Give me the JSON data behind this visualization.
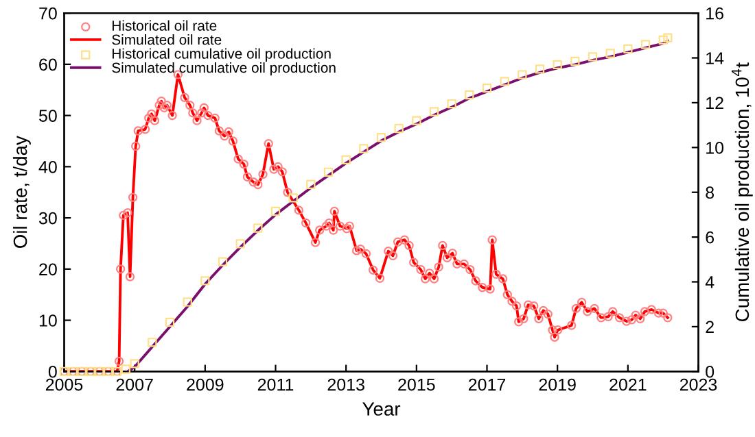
{
  "chart_data": {
    "type": "line",
    "xlabel": "Year",
    "ylabel": "Oil rate, t/day",
    "y2label": "Cumulative oil production, 10$^{4}$t",
    "xlim": [
      2005,
      2023
    ],
    "xticks": [
      2005,
      2007,
      2009,
      2011,
      2013,
      2015,
      2017,
      2019,
      2021,
      2023
    ],
    "ylim": [
      0,
      70
    ],
    "yticks": [
      0,
      10,
      20,
      30,
      40,
      50,
      60,
      70
    ],
    "y2lim": [
      0,
      16
    ],
    "y2ticks": [
      0,
      2,
      4,
      6,
      8,
      10,
      12,
      14,
      16
    ],
    "grid": false,
    "legend": "top left",
    "series": [
      {
        "name": "Historical oil rate",
        "type": "scatter",
        "marker": "circle",
        "color": "#ff8080",
        "x": [
          2005.0,
          2005.25,
          2005.5,
          2005.75,
          2006.0,
          2006.25,
          2006.5,
          2006.56,
          2006.6,
          2006.68,
          2006.8,
          2006.87,
          2006.95,
          2007.03,
          2007.1,
          2007.3,
          2007.4,
          2007.48,
          2007.57,
          2007.7,
          2007.76,
          2007.84,
          2007.92,
          2008.07,
          2008.23,
          2008.42,
          2008.57,
          2008.65,
          2008.77,
          2008.9,
          2008.97,
          2009.08,
          2009.28,
          2009.4,
          2009.55,
          2009.67,
          2009.79,
          2009.94,
          2010.1,
          2010.2,
          2010.37,
          2010.5,
          2010.64,
          2010.8,
          2010.95,
          2011.07,
          2011.19,
          2011.34,
          2011.66,
          2011.86,
          2012.13,
          2012.25,
          2012.44,
          2012.52,
          2012.64,
          2012.67,
          2012.83,
          2013.02,
          2013.1,
          2013.3,
          2013.41,
          2013.57,
          2013.77,
          2013.96,
          2014.2,
          2014.33,
          2014.47,
          2014.66,
          2014.79,
          2014.92,
          2015.12,
          2015.25,
          2015.37,
          2015.5,
          2015.63,
          2015.74,
          2015.87,
          2016.02,
          2016.15,
          2016.35,
          2016.52,
          2016.68,
          2016.87,
          2017.09,
          2017.15,
          2017.26,
          2017.45,
          2017.58,
          2017.71,
          2017.84,
          2017.9,
          2018.04,
          2018.17,
          2018.33,
          2018.47,
          2018.6,
          2018.73,
          2018.86,
          2018.92,
          2019.01,
          2019.4,
          2019.53,
          2019.69,
          2019.85,
          2020.05,
          2020.24,
          2020.44,
          2020.57,
          2020.76,
          2020.96,
          2021.11,
          2021.22,
          2021.35,
          2021.48,
          2021.67,
          2021.87,
          2022.0,
          2022.13
        ],
        "values": [
          0,
          0,
          0,
          0,
          0,
          0,
          0,
          2,
          20,
          30.5,
          31,
          18.5,
          34,
          44,
          47,
          47.3,
          49.5,
          50.3,
          49,
          52,
          52.8,
          51.5,
          52,
          50,
          58,
          53.5,
          52,
          50.5,
          49,
          50.5,
          51.5,
          50,
          49.5,
          47,
          46,
          46.8,
          45,
          41.5,
          40.5,
          38,
          37,
          36.5,
          38.5,
          44.5,
          39.5,
          40,
          39,
          35,
          31.5,
          29,
          25.2,
          27.6,
          28.4,
          29,
          27.6,
          31.3,
          28.4,
          27.9,
          28.4,
          23.6,
          23.9,
          23,
          19.8,
          18.2,
          23.5,
          22.6,
          25.3,
          25.7,
          24.6,
          21.3,
          19.9,
          18.1,
          19.2,
          18.1,
          20.4,
          24.6,
          22.2,
          23.1,
          21,
          21,
          19.9,
          17.7,
          16.4,
          16.1,
          25.7,
          19,
          18.1,
          15,
          13.7,
          12.8,
          9.7,
          10.3,
          13,
          12.8,
          10.3,
          11.9,
          11.2,
          8.1,
          6.7,
          8.1,
          9,
          12.3,
          13.5,
          11.7,
          12.3,
          10.5,
          10.7,
          11.7,
          10.5,
          9.8,
          10.1,
          11,
          10.3,
          11.7,
          12.1,
          11.4,
          11.4,
          10.5
        ]
      },
      {
        "name": "Simulated oil rate",
        "marker": "none",
        "color": "#ff0000",
        "x": [
          2005.0,
          2006.5,
          2006.56,
          2006.6,
          2006.68,
          2006.8,
          2006.87,
          2006.95,
          2007.03,
          2007.1,
          2007.3,
          2007.4,
          2007.48,
          2007.57,
          2007.7,
          2007.76,
          2007.84,
          2007.92,
          2008.07,
          2008.23,
          2008.42,
          2008.57,
          2008.65,
          2008.77,
          2008.9,
          2008.97,
          2009.08,
          2009.28,
          2009.4,
          2009.55,
          2009.67,
          2009.79,
          2009.94,
          2010.1,
          2010.2,
          2010.37,
          2010.5,
          2010.64,
          2010.8,
          2010.95,
          2011.07,
          2011.19,
          2011.34,
          2011.66,
          2011.86,
          2012.13,
          2012.25,
          2012.44,
          2012.52,
          2012.64,
          2012.67,
          2012.83,
          2013.02,
          2013.1,
          2013.3,
          2013.41,
          2013.57,
          2013.77,
          2013.96,
          2014.2,
          2014.33,
          2014.47,
          2014.66,
          2014.79,
          2014.92,
          2015.12,
          2015.25,
          2015.37,
          2015.5,
          2015.63,
          2015.74,
          2015.87,
          2016.02,
          2016.15,
          2016.35,
          2016.52,
          2016.68,
          2016.87,
          2017.09,
          2017.15,
          2017.26,
          2017.45,
          2017.58,
          2017.71,
          2017.84,
          2017.9,
          2018.04,
          2018.17,
          2018.33,
          2018.47,
          2018.6,
          2018.73,
          2018.86,
          2018.92,
          2019.01,
          2019.4,
          2019.53,
          2019.69,
          2019.85,
          2020.05,
          2020.24,
          2020.44,
          2020.57,
          2020.76,
          2020.96,
          2021.11,
          2021.22,
          2021.35,
          2021.48,
          2021.67,
          2021.87,
          2022.0,
          2022.13
        ],
        "values": [
          0,
          0,
          2,
          20,
          30.5,
          31,
          18.5,
          34,
          44,
          47,
          47.3,
          49.5,
          50.3,
          49,
          52,
          52.8,
          51.5,
          52,
          50,
          58,
          53.5,
          52,
          50.5,
          49,
          50.5,
          51.5,
          50,
          49.5,
          47,
          46,
          46.8,
          45,
          41.5,
          40.5,
          38,
          37,
          36.5,
          38.5,
          44.5,
          39.5,
          40,
          39,
          35,
          31.5,
          29,
          25.2,
          27.6,
          28.4,
          29,
          27.6,
          31.3,
          28.4,
          27.9,
          28.4,
          23.6,
          23.9,
          23,
          19.8,
          18.2,
          23.5,
          22.6,
          25.3,
          25.7,
          24.6,
          21.3,
          19.9,
          18.1,
          19.2,
          18.1,
          20.4,
          24.6,
          22.2,
          23.1,
          21,
          21,
          19.9,
          17.7,
          16.4,
          16.1,
          25.7,
          19,
          18.1,
          15,
          13.7,
          12.8,
          9.7,
          10.3,
          13,
          12.8,
          10.3,
          11.9,
          11.2,
          8.1,
          6.7,
          8.1,
          9,
          12.3,
          13.5,
          11.7,
          12.3,
          10.5,
          10.7,
          11.7,
          10.5,
          9.8,
          10.1,
          11,
          10.3,
          11.7,
          12.1,
          11.4,
          11.4,
          10.5
        ]
      },
      {
        "name": "Historical cumulative oil production",
        "type": "scatter",
        "marker": "square",
        "color": "#ffe08a",
        "axis": "y2",
        "x": [
          2005.0,
          2005.25,
          2005.5,
          2005.75,
          2006.0,
          2006.25,
          2006.5,
          2006.75,
          2007.0,
          2007.5,
          2008.0,
          2008.5,
          2009.0,
          2009.5,
          2010.0,
          2010.5,
          2011.0,
          2011.5,
          2012.0,
          2012.5,
          2013.0,
          2013.5,
          2014.0,
          2014.5,
          2015.0,
          2015.5,
          2016.0,
          2016.5,
          2017.0,
          2017.5,
          2018.0,
          2018.5,
          2019.0,
          2019.5,
          2020.0,
          2020.5,
          2021.0,
          2021.5,
          2022.0,
          2022.13
        ],
        "values": [
          0,
          0,
          0,
          0,
          0,
          0,
          0,
          0.1,
          0.35,
          1.3,
          2.2,
          3.1,
          4.05,
          4.9,
          5.7,
          6.4,
          7.15,
          7.75,
          8.35,
          8.9,
          9.45,
          9.95,
          10.45,
          10.85,
          11.2,
          11.6,
          11.95,
          12.35,
          12.65,
          12.95,
          13.25,
          13.5,
          13.7,
          13.85,
          14.05,
          14.2,
          14.4,
          14.6,
          14.8,
          14.9
        ]
      },
      {
        "name": "Simulated cumulative oil production",
        "marker": "none",
        "color": "#7b0f6e",
        "axis": "y2",
        "x": [
          2006.8,
          2007.0,
          2007.5,
          2008.0,
          2008.5,
          2009.0,
          2009.5,
          2010.0,
          2010.5,
          2011.0,
          2011.5,
          2012.0,
          2012.5,
          2013.0,
          2013.5,
          2014.0,
          2014.5,
          2015.0,
          2015.5,
          2016.0,
          2016.5,
          2017.0,
          2017.5,
          2018.0,
          2018.5,
          2019.0,
          2019.5,
          2020.0,
          2020.5,
          2021.0,
          2021.5,
          2022.0,
          2022.13
        ],
        "values": [
          0,
          0.2,
          1.1,
          2.0,
          2.9,
          3.9,
          4.75,
          5.55,
          6.3,
          7.0,
          7.6,
          8.2,
          8.75,
          9.3,
          9.8,
          10.3,
          10.7,
          11.05,
          11.45,
          11.8,
          12.2,
          12.5,
          12.8,
          13.1,
          13.35,
          13.55,
          13.7,
          13.9,
          14.05,
          14.25,
          14.45,
          14.65,
          14.75
        ]
      }
    ]
  }
}
